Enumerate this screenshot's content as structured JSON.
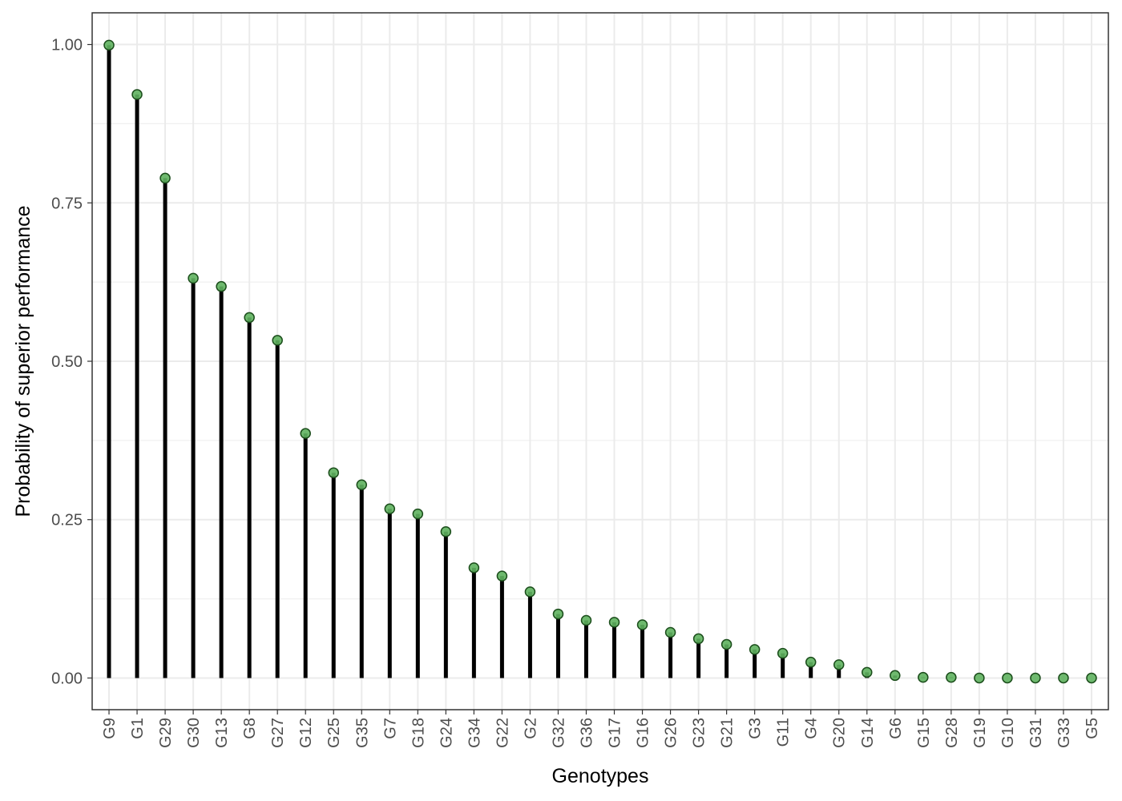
{
  "chart_data": {
    "type": "lollipop",
    "x_label": "Genotypes",
    "y_label": "Probability of superior performance",
    "categories": [
      "G9",
      "G1",
      "G29",
      "G30",
      "G13",
      "G8",
      "G27",
      "G12",
      "G25",
      "G35",
      "G7",
      "G18",
      "G24",
      "G34",
      "G22",
      "G2",
      "G32",
      "G36",
      "G17",
      "G16",
      "G26",
      "G23",
      "G21",
      "G3",
      "G11",
      "G4",
      "G20",
      "G14",
      "G6",
      "G15",
      "G28",
      "G19",
      "G10",
      "G31",
      "G33",
      "G5"
    ],
    "values": [
      0.999,
      0.921,
      0.789,
      0.631,
      0.618,
      0.569,
      0.533,
      0.386,
      0.324,
      0.305,
      0.267,
      0.259,
      0.231,
      0.174,
      0.161,
      0.136,
      0.101,
      0.091,
      0.088,
      0.084,
      0.072,
      0.062,
      0.053,
      0.045,
      0.039,
      0.025,
      0.021,
      0.009,
      0.004,
      0.001,
      0.001,
      0,
      0,
      0,
      0,
      0
    ],
    "color": "#5fb35f",
    "stem_color": "#000000",
    "ylim": [
      -0.05,
      1.05
    ],
    "yticks": [
      {
        "value": 0,
        "label": "0.00"
      },
      {
        "value": 0.25,
        "label": "0.25"
      },
      {
        "value": 0.5,
        "label": "0.50"
      },
      {
        "value": 0.75,
        "label": "0.75"
      },
      {
        "value": 1,
        "label": "1.00"
      }
    ],
    "minor_yticks": [
      0.125,
      0.375,
      0.625,
      0.875
    ],
    "grid": true
  }
}
